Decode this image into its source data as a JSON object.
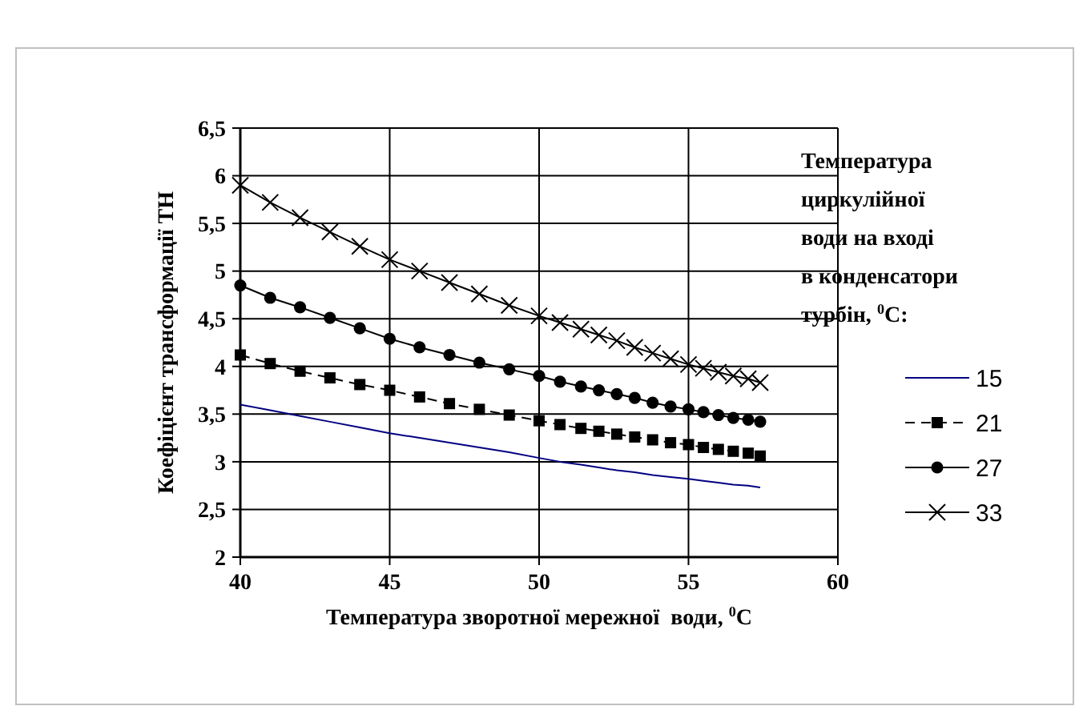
{
  "chart_data": {
    "type": "line",
    "xlabel": "Температура зворотної мережної  води, $^{0}$C",
    "ylabel": "Коефіцієнт трансформації ТН",
    "legend_title": "Температура циркулійної води на вході в конденсатори турбін, $^{0}$C:",
    "x": [
      40,
      41,
      42,
      43,
      44,
      45,
      46,
      47,
      48,
      49,
      50,
      50.7,
      51.4,
      52,
      52.6,
      53.2,
      53.8,
      54.4,
      55,
      55.5,
      56,
      56.5,
      57,
      57.4
    ],
    "xlim": [
      40,
      60
    ],
    "xticks": [
      40,
      45,
      50,
      55,
      60
    ],
    "ylim": [
      2,
      6.5
    ],
    "yticks": [
      {
        "value": 2,
        "label": "2"
      },
      {
        "value": 2.5,
        "label": "2,5"
      },
      {
        "value": 3,
        "label": "3"
      },
      {
        "value": 3.5,
        "label": "3,5"
      },
      {
        "value": 4,
        "label": "4"
      },
      {
        "value": 4.5,
        "label": "4,5"
      },
      {
        "value": 5,
        "label": "5"
      },
      {
        "value": 5.5,
        "label": "5,5"
      },
      {
        "value": 6,
        "label": "6"
      },
      {
        "value": 6.5,
        "label": "6,5"
      }
    ],
    "grid": true,
    "legend": "right",
    "series": [
      {
        "name": "15",
        "color": "#000080",
        "marker": "none",
        "line_style": "solid",
        "values": [
          3.6,
          3.54,
          3.48,
          3.42,
          3.36,
          3.3,
          3.25,
          3.2,
          3.15,
          3.1,
          3.04,
          3.0,
          2.97,
          2.94,
          2.91,
          2.89,
          2.86,
          2.84,
          2.82,
          2.8,
          2.78,
          2.76,
          2.75,
          2.73
        ]
      },
      {
        "name": "21",
        "color": "#000000",
        "marker": "square",
        "line_style": "dashed",
        "values": [
          4.12,
          4.03,
          3.95,
          3.88,
          3.81,
          3.75,
          3.68,
          3.61,
          3.55,
          3.49,
          3.43,
          3.39,
          3.35,
          3.32,
          3.29,
          3.26,
          3.23,
          3.2,
          3.18,
          3.15,
          3.13,
          3.11,
          3.09,
          3.06
        ]
      },
      {
        "name": "27",
        "color": "#000000",
        "marker": "circle",
        "line_style": "solid",
        "values": [
          4.85,
          4.72,
          4.62,
          4.51,
          4.4,
          4.29,
          4.2,
          4.12,
          4.04,
          3.97,
          3.9,
          3.84,
          3.79,
          3.75,
          3.71,
          3.67,
          3.62,
          3.58,
          3.55,
          3.52,
          3.49,
          3.46,
          3.44,
          3.42
        ]
      },
      {
        "name": "33",
        "color": "#000000",
        "marker": "cross",
        "line_style": "solid",
        "values": [
          5.9,
          5.72,
          5.56,
          5.41,
          5.26,
          5.12,
          5.0,
          4.88,
          4.76,
          4.64,
          4.53,
          4.46,
          4.39,
          4.33,
          4.27,
          4.2,
          4.14,
          4.08,
          4.02,
          3.98,
          3.94,
          3.9,
          3.87,
          3.83
        ]
      }
    ]
  }
}
